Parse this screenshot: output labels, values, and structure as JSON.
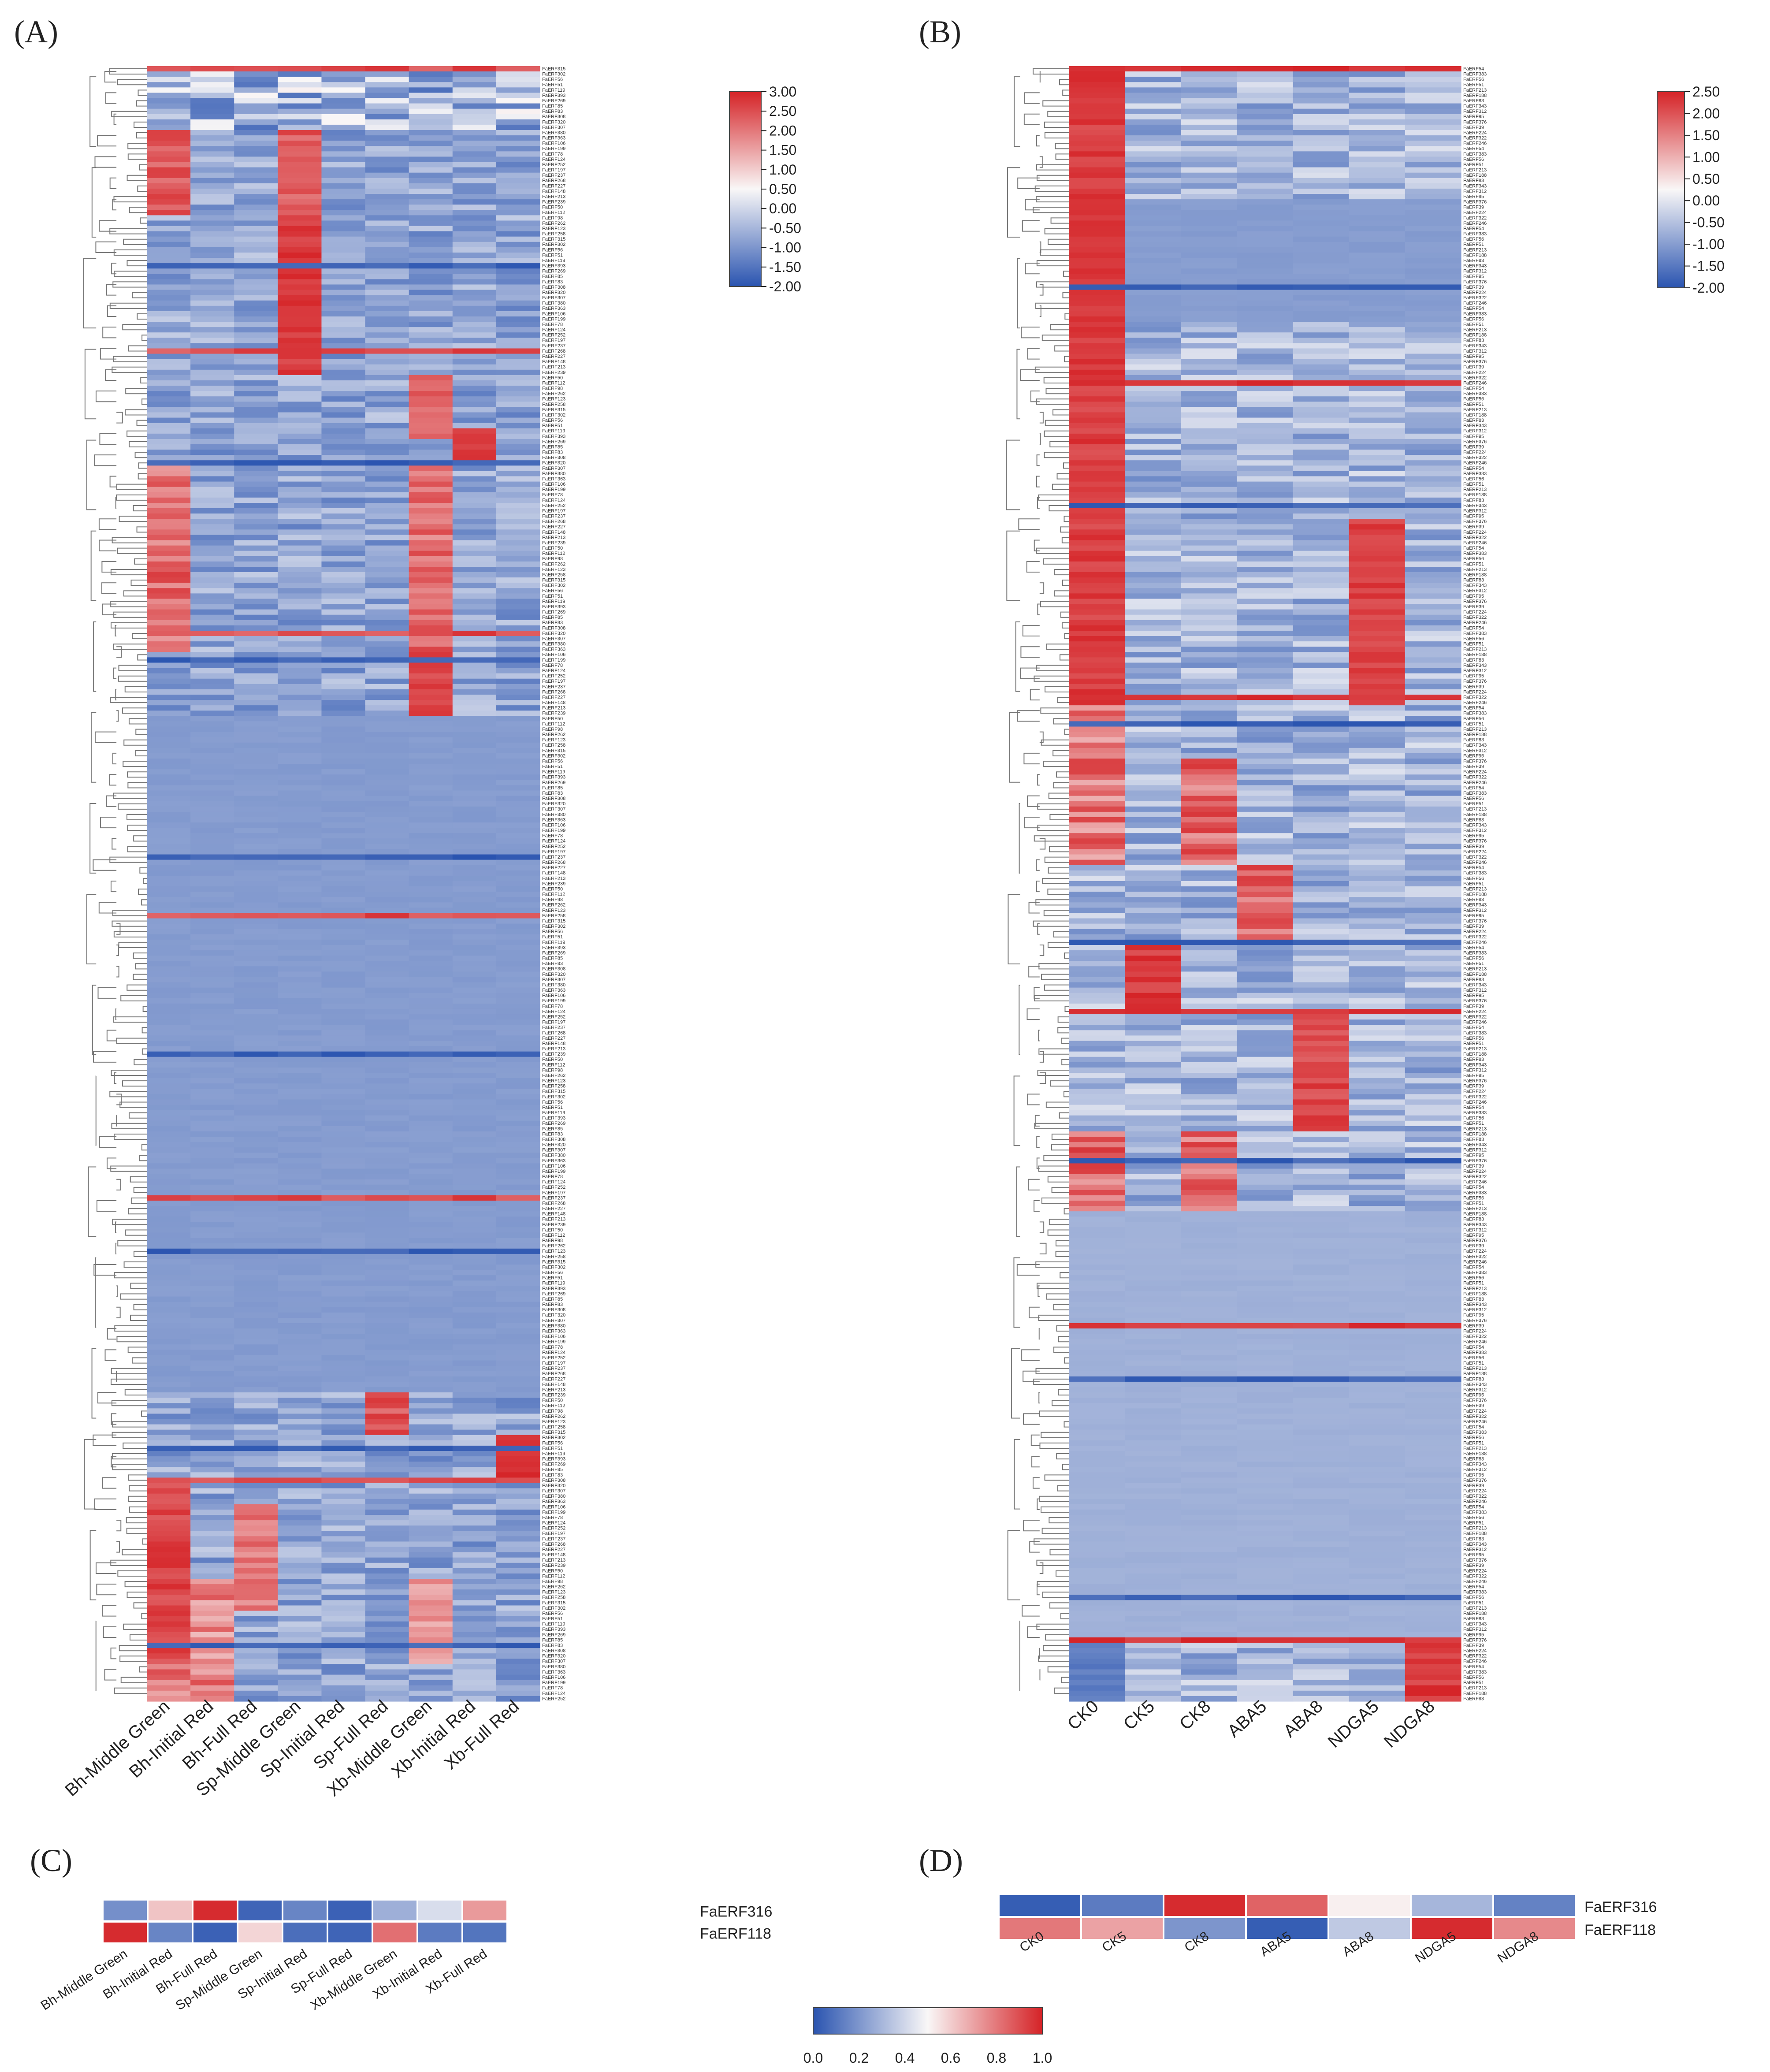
{
  "chart_data": [
    {
      "panel": "(A)",
      "type": "heatmap",
      "columns": [
        "Bh-Middle Green",
        "Bh-Initial Red",
        "Bh-Full Red",
        "Sp-Middle Green",
        "Sp-Initial Red",
        "Sp-Full Red",
        "Xb-Middle Green",
        "Xb-Initial Red",
        "Xb-Full Red"
      ],
      "rows_shown": [
        "FaERF315",
        "FaERF302",
        "FaERF56",
        "FaERF51",
        "FaERF119",
        "FaERF393",
        "FaERF269",
        "FaERF85",
        "FaERF83",
        "FaERF308",
        "FaERF320",
        "FaERF307",
        "FaERF380",
        "FaERF363",
        "FaERF106",
        "FaERF199",
        "FaERF78",
        "FaERF124",
        "FaERF252",
        "FaERF197",
        "FaERF237",
        "FaERF268",
        "FaERF227",
        "FaERF148",
        "FaERF213",
        "FaERF239",
        "FaERF50",
        "FaERF112",
        "FaERF98",
        "FaERF262",
        "FaERF123",
        "FaERF258"
      ],
      "row_count": 307,
      "colorbar": {
        "ticks": [
          "3.00",
          "2.50",
          "2.00",
          "1.50",
          "1.00",
          "0.50",
          "0.00",
          "-0.50",
          "-1.00",
          "-1.50",
          "-2.00"
        ],
        "min": -2,
        "max": 3
      },
      "blocks": [
        {
          "rows": [
            0,
            90
          ],
          "pattern": "mixed low-to-high expression clusters"
        },
        {
          "rows": [
            120,
            250
          ],
          "pattern": "uniform low expression"
        },
        {
          "rows": [
            250,
            307
          ],
          "pattern": "Bh and Xb high-expression clusters"
        }
      ]
    },
    {
      "panel": "(B)",
      "type": "heatmap",
      "columns": [
        "CK0",
        "CK5",
        "CK8",
        "ABA5",
        "ABA8",
        "NDGA5",
        "NDGA8"
      ],
      "rows_shown": [
        "FaERF54",
        "FaERF383",
        "FaERF56",
        "FaERF51",
        "FaERF213",
        "FaERF188",
        "FaERF83",
        "FaERF343",
        "FaERF312",
        "FaERF95",
        "FaERF376",
        "FaERF39",
        "FaERF224",
        "FaERF322",
        "FaERF246"
      ],
      "row_count": 307,
      "colorbar": {
        "ticks": [
          "2.50",
          "2.00",
          "1.50",
          "1.00",
          "0.50",
          "0.00",
          "-0.50",
          "-1.00",
          "-1.50",
          "-2.00"
        ],
        "min": -2,
        "max": 2.5
      },
      "blocks": [
        {
          "rows": [
            0,
            120
          ],
          "pattern": "CK0 strongly upregulated"
        },
        {
          "rows": [
            120,
            205
          ],
          "pattern": "treatment-specific clusters"
        },
        {
          "rows": [
            205,
            307
          ],
          "pattern": "uniform low expression"
        }
      ]
    },
    {
      "panel": "(C)",
      "type": "heatmap",
      "columns": [
        "Bh-Middle Green",
        "Bh-Initial Red",
        "Bh-Full Red",
        "Sp-Middle Green",
        "Sp-Initial Red",
        "Sp-Full Red",
        "Xb-Middle Green",
        "Xb-Initial Red",
        "Xb-Full Red"
      ],
      "rows": [
        "FaERF316",
        "FaERF118"
      ],
      "values": [
        [
          0.18,
          0.62,
          0.98,
          0.05,
          0.15,
          0.04,
          0.28,
          0.42,
          0.72
        ],
        [
          0.98,
          0.15,
          0.04,
          0.58,
          0.08,
          0.05,
          0.82,
          0.12,
          0.1
        ]
      ]
    },
    {
      "panel": "(D)",
      "type": "heatmap",
      "columns": [
        "CK0",
        "CK5",
        "CK8",
        "ABA5",
        "ABA8",
        "NDGA5",
        "NDGA8"
      ],
      "rows": [
        "FaERF316",
        "FaERF118"
      ],
      "values": [
        [
          0.03,
          0.12,
          0.98,
          0.85,
          0.52,
          0.3,
          0.14
        ],
        [
          0.8,
          0.7,
          0.2,
          0.03,
          0.36,
          0.98,
          0.76
        ]
      ],
      "shared_colorbar": {
        "ticks": [
          "0.0",
          "0.2",
          "0.4",
          "0.6",
          "0.8",
          "1.0"
        ],
        "min": 0,
        "max": 1
      }
    }
  ]
}
